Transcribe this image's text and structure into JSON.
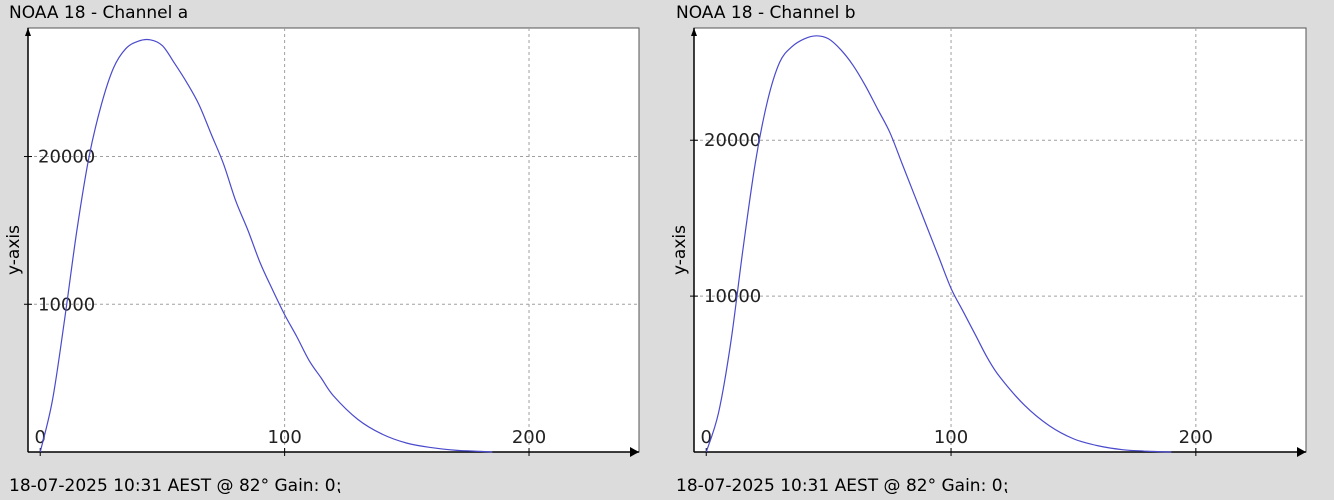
{
  "panels": [
    {
      "title": "NOAA 18 - Channel a",
      "footer": "18-07-2025 10:31 AEST @ 82° Gain: 0⁏"
    },
    {
      "title": "NOAA 18 - Channel b",
      "footer": "18-07-2025 10:31 AEST @ 82° Gain: 0⁏"
    }
  ],
  "colors": {
    "background": "#dcdcdc",
    "plot_area": "#ffffff",
    "grid": "#a0a0a0",
    "line": "#4a4acd",
    "axis": "#000000"
  },
  "chart_data": [
    {
      "type": "line",
      "title": "NOAA 18 - Channel a",
      "xlabel": "",
      "ylabel": "y-axis",
      "xlim": [
        -5,
        245
      ],
      "ylim": [
        0,
        28700
      ],
      "x_ticks": [
        0,
        100,
        200
      ],
      "y_ticks": [
        10000,
        20000
      ],
      "grid": true,
      "series": [
        {
          "x": [
            0,
            5,
            10,
            15,
            20,
            25,
            30,
            35,
            40,
            45,
            50,
            55,
            60,
            65,
            70,
            75,
            80,
            85,
            90,
            95,
            100,
            105,
            110,
            115,
            120,
            130,
            140,
            150,
            160,
            170,
            180,
            185
          ],
          "y": [
            0,
            3500,
            9000,
            15000,
            20000,
            23500,
            26000,
            27300,
            27800,
            27900,
            27500,
            26300,
            25000,
            23500,
            21500,
            19500,
            17000,
            15000,
            12800,
            11000,
            9300,
            7800,
            6200,
            5000,
            3800,
            2200,
            1200,
            600,
            300,
            120,
            40,
            0
          ]
        }
      ]
    },
    {
      "type": "line",
      "title": "NOAA 18 - Channel b",
      "xlabel": "",
      "ylabel": "y-axis",
      "xlim": [
        -5,
        245
      ],
      "ylim": [
        0,
        27200
      ],
      "x_ticks": [
        0,
        100,
        200
      ],
      "y_ticks": [
        10000,
        20000
      ],
      "grid": true,
      "series": [
        {
          "x": [
            0,
            5,
            10,
            15,
            20,
            25,
            30,
            35,
            40,
            45,
            50,
            55,
            60,
            65,
            70,
            75,
            80,
            85,
            90,
            95,
            100,
            105,
            110,
            115,
            120,
            130,
            140,
            150,
            160,
            170,
            180,
            190
          ],
          "y": [
            0,
            2500,
            7000,
            13000,
            18500,
            22500,
            25000,
            26000,
            26500,
            26700,
            26500,
            25800,
            24800,
            23500,
            22000,
            20500,
            18500,
            16500,
            14500,
            12500,
            10500,
            9000,
            7500,
            6000,
            4800,
            3000,
            1700,
            850,
            400,
            150,
            50,
            0
          ]
        }
      ]
    }
  ]
}
